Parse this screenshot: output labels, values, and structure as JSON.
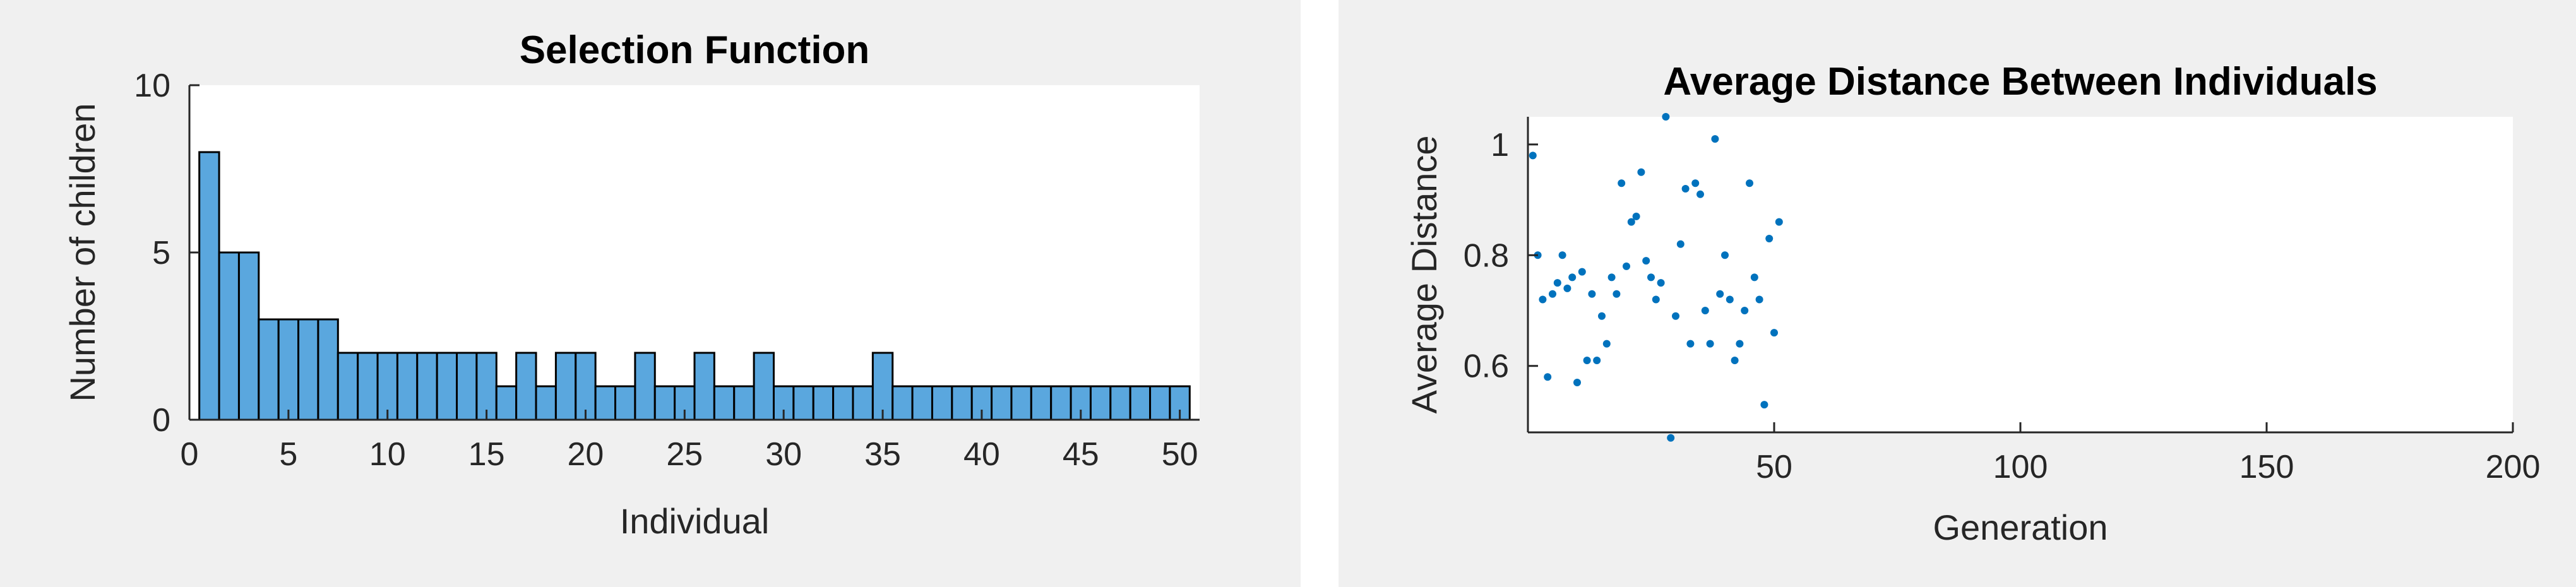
{
  "chart_data": [
    {
      "type": "bar",
      "title": "Selection Function",
      "xlabel": "Individual",
      "ylabel": "Number of children",
      "xlim": [
        0,
        51
      ],
      "ylim": [
        0,
        10
      ],
      "xticks": [
        "0",
        "5",
        "10",
        "15",
        "20",
        "25",
        "30",
        "35",
        "40",
        "45",
        "50"
      ],
      "yticks": [
        "0",
        "5",
        "10"
      ],
      "categories": [
        1,
        2,
        3,
        4,
        5,
        6,
        7,
        8,
        9,
        10,
        11,
        12,
        13,
        14,
        15,
        16,
        17,
        18,
        19,
        20,
        21,
        22,
        23,
        24,
        25,
        26,
        27,
        28,
        29,
        30,
        31,
        32,
        33,
        34,
        35,
        36,
        37,
        38,
        39,
        40,
        41,
        42,
        43,
        44,
        45,
        46,
        47,
        48,
        49,
        50
      ],
      "values": [
        8,
        5,
        5,
        3,
        3,
        3,
        3,
        2,
        2,
        2,
        2,
        2,
        2,
        2,
        2,
        1,
        2,
        1,
        2,
        2,
        1,
        1,
        2,
        1,
        1,
        2,
        1,
        1,
        2,
        1,
        1,
        1,
        1,
        1,
        2,
        1,
        1,
        1,
        1,
        1,
        1,
        1,
        1,
        1,
        1,
        1,
        1,
        1,
        1,
        1
      ],
      "bar_color": "#5aa7de",
      "grid": false
    },
    {
      "type": "scatter",
      "title": "Average Distance Between Individuals",
      "xlabel": "Generation",
      "ylabel": "Average Distance",
      "xlim": [
        0,
        200
      ],
      "ylim": [
        0.48,
        1.05
      ],
      "xticks": [
        "50",
        "100",
        "150",
        "200"
      ],
      "yticks": [
        "0.6",
        "0.8",
        "1"
      ],
      "point_color": "#0072bd",
      "grid": false,
      "x": [
        1,
        2,
        3,
        4,
        5,
        6,
        7,
        8,
        9,
        10,
        11,
        12,
        13,
        14,
        15,
        16,
        17,
        18,
        19,
        20,
        21,
        22,
        23,
        24,
        25,
        26,
        27,
        28,
        29,
        30,
        31,
        32,
        33,
        34,
        35,
        36,
        37,
        38,
        39,
        40,
        41,
        42,
        43,
        44,
        45,
        46,
        47,
        48,
        49,
        50,
        51
      ],
      "y": [
        0.98,
        0.8,
        0.72,
        0.58,
        0.73,
        0.75,
        0.8,
        0.74,
        0.76,
        0.57,
        0.77,
        0.61,
        0.73,
        0.61,
        0.69,
        0.64,
        0.76,
        0.73,
        0.93,
        0.78,
        0.86,
        0.87,
        0.95,
        0.79,
        0.76,
        0.72,
        0.75,
        1.05,
        0.47,
        0.69,
        0.82,
        0.92,
        0.64,
        0.93,
        0.91,
        0.7,
        0.64,
        1.01,
        0.73,
        0.8,
        0.72,
        0.61,
        0.64,
        0.7,
        0.93,
        0.76,
        0.72,
        0.53,
        0.83,
        0.66,
        0.86
      ]
    }
  ]
}
